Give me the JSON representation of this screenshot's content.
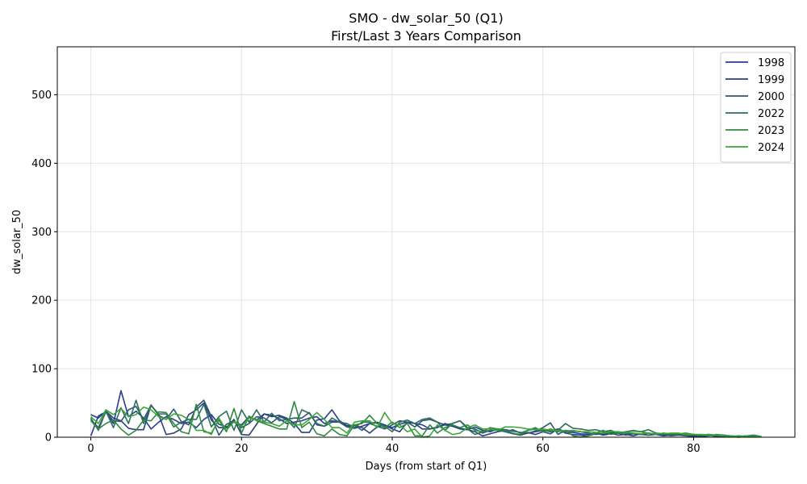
{
  "chart_data": {
    "type": "line",
    "title": "SMO - dw_solar_50 (Q1)",
    "subtitle": "First/Last 3 Years Comparison",
    "xlabel": "Days (from start of Q1)",
    "ylabel": "dw_solar_50",
    "xlim": [
      -4.45,
      93.45
    ],
    "ylim": [
      0,
      570
    ],
    "xticks": [
      0,
      20,
      40,
      60,
      80
    ],
    "yticks": [
      0,
      100,
      200,
      300,
      400,
      500
    ],
    "grid": true,
    "legend_position": "top-right",
    "series": [
      {
        "name": "1998",
        "color": "#2b3a9a",
        "values": [
          2,
          31,
          37,
          20,
          68,
          30,
          38,
          28,
          12,
          22,
          30,
          26,
          20,
          22,
          14,
          26,
          33,
          19,
          15,
          22,
          18,
          30,
          25,
          34,
          32,
          27,
          20,
          22,
          24,
          28,
          30,
          20,
          24,
          22,
          15,
          13,
          16,
          20,
          22,
          18,
          14,
          19,
          22,
          20,
          18,
          12,
          15,
          18,
          16,
          13,
          11,
          15,
          10,
          8,
          12,
          11,
          9,
          7,
          6,
          8,
          10,
          9,
          12,
          8,
          7,
          5,
          4,
          6,
          3,
          5,
          7,
          6,
          5,
          4,
          6,
          4,
          3,
          5,
          4,
          3,
          2,
          3,
          4,
          2,
          3,
          1,
          2,
          1,
          2,
          1
        ]
      },
      {
        "name": "1999",
        "color": "#2a3f80",
        "values": [
          33,
          28,
          38,
          28,
          24,
          13,
          11,
          11,
          47,
          33,
          4,
          6,
          12,
          33,
          40,
          50,
          25,
          14,
          14,
          26,
          4,
          3,
          19,
          34,
          30,
          32,
          28,
          20,
          7,
          7,
          25,
          27,
          40,
          24,
          17,
          17,
          14,
          6,
          15,
          18,
          12,
          8,
          22,
          20,
          12,
          12,
          14,
          20,
          16,
          12,
          11,
          8,
          2,
          5,
          8,
          10,
          6,
          3,
          7,
          4,
          8,
          5,
          12,
          6,
          4,
          3,
          2,
          5,
          4,
          6,
          3,
          4,
          2,
          5,
          3,
          4,
          2,
          3,
          4,
          2,
          3,
          1,
          2,
          3,
          1,
          2,
          1,
          2,
          3,
          1
        ]
      },
      {
        "name": "2000",
        "color": "#2d5670",
        "values": [
          26,
          14,
          37,
          24,
          23,
          40,
          45,
          26,
          47,
          32,
          26,
          41,
          23,
          18,
          44,
          54,
          30,
          3,
          19,
          23,
          14,
          20,
          30,
          28,
          21,
          30,
          26,
          28,
          28,
          36,
          18,
          16,
          22,
          22,
          15,
          18,
          10,
          20,
          16,
          12,
          18,
          24,
          22,
          15,
          24,
          26,
          22,
          18,
          20,
          24,
          14,
          12,
          6,
          10,
          12,
          8,
          5,
          3,
          6,
          9,
          14,
          21,
          4,
          10,
          9,
          8,
          6,
          4,
          5,
          7,
          6,
          3,
          5,
          4,
          3,
          5,
          4,
          2,
          3,
          2,
          1,
          2,
          3,
          1,
          2,
          1,
          0,
          2,
          1,
          1
        ]
      },
      {
        "name": "2022",
        "color": "#2e6e5c",
        "values": [
          28,
          10,
          38,
          14,
          43,
          20,
          54,
          20,
          46,
          34,
          34,
          15,
          22,
          26,
          26,
          48,
          15,
          30,
          38,
          10,
          40,
          22,
          40,
          22,
          35,
          24,
          26,
          14,
          40,
          35,
          20,
          16,
          28,
          22,
          20,
          14,
          22,
          22,
          20,
          16,
          8,
          22,
          25,
          20,
          26,
          28,
          22,
          10,
          20,
          24,
          12,
          4,
          8,
          10,
          10,
          8,
          11,
          6,
          10,
          12,
          10,
          8,
          10,
          20,
          13,
          12,
          10,
          11,
          8,
          10,
          6,
          8,
          9,
          8,
          11,
          6,
          5,
          4,
          5,
          3,
          4,
          3,
          2,
          4,
          3,
          2,
          1,
          2,
          1,
          1
        ]
      },
      {
        "name": "2023",
        "color": "#2e8a3e",
        "values": [
          24,
          12,
          20,
          25,
          12,
          3,
          10,
          25,
          24,
          37,
          36,
          20,
          8,
          5,
          48,
          8,
          6,
          25,
          8,
          42,
          6,
          31,
          24,
          20,
          16,
          12,
          12,
          52,
          14,
          22,
          5,
          2,
          12,
          4,
          2,
          18,
          20,
          32,
          20,
          14,
          22,
          14,
          20,
          2,
          2,
          18,
          6,
          14,
          18,
          14,
          18,
          10,
          8,
          14,
          12,
          10,
          6,
          4,
          10,
          14,
          8,
          12,
          8,
          10,
          2,
          0,
          2,
          6,
          10,
          4,
          6,
          8,
          10,
          8,
          6,
          4,
          6,
          5,
          5,
          6,
          4,
          3,
          4,
          3,
          2,
          1,
          2,
          1,
          2,
          1
        ]
      },
      {
        "name": "2024",
        "color": "#38a832",
        "values": [
          30,
          20,
          40,
          33,
          42,
          30,
          33,
          44,
          40,
          30,
          26,
          34,
          32,
          26,
          10,
          10,
          4,
          28,
          10,
          23,
          16,
          28,
          26,
          22,
          20,
          16,
          24,
          18,
          18,
          26,
          36,
          26,
          14,
          14,
          6,
          22,
          24,
          24,
          14,
          36,
          20,
          18,
          8,
          12,
          0,
          2,
          18,
          10,
          4,
          6,
          14,
          18,
          12,
          12,
          10,
          15,
          15,
          14,
          12,
          11,
          12,
          10,
          10,
          9,
          10,
          8,
          8,
          7,
          6,
          8,
          8,
          7,
          6,
          5,
          6,
          5,
          5,
          6,
          6,
          4,
          4,
          4,
          3,
          3,
          2,
          2,
          1,
          2,
          2,
          1
        ]
      }
    ]
  }
}
